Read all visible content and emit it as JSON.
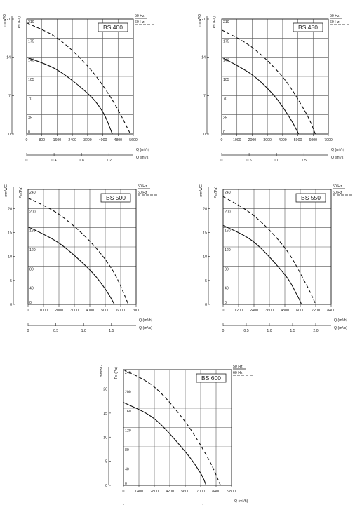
{
  "legend": {
    "hz50": "50 Hz",
    "hz60": "60 Hz"
  },
  "axes": {
    "ps_label": "Ps (Pa)",
    "mm_label": "mmWG",
    "q_h_label": "Q (m³/h)",
    "q_s_label": "Q (m³/s)"
  },
  "colors": {
    "line": "#111111",
    "grid": "#555555",
    "frame": "#222222"
  },
  "chart_data": [
    {
      "type": "line",
      "title": "BS 400",
      "ylabel": "Ps (Pa)",
      "y2label": "mmWG",
      "xlabel": "Q (m³/h)",
      "x2label": "Q (m³/s)",
      "ylim": [
        0,
        210
      ],
      "xlim": [
        0,
        5600
      ],
      "yticks": [
        0,
        35,
        70,
        105,
        140,
        175,
        210
      ],
      "mmticks": [
        {
          "v": 0,
          "label": "0"
        },
        {
          "v": 70,
          "label": "7"
        },
        {
          "v": 140,
          "label": "14"
        },
        {
          "v": 210,
          "label": "21"
        }
      ],
      "xticks": [
        0,
        800,
        1600,
        2400,
        3200,
        4000,
        4800,
        5600
      ],
      "x2ticks": [
        {
          "label": "0",
          "v": 0
        },
        {
          "label": "0.4",
          "v": 1440
        },
        {
          "label": "0.8",
          "v": 2880
        },
        {
          "label": "1.2",
          "v": 4320
        }
      ],
      "series": [
        {
          "name": "50 Hz",
          "dash": false,
          "points": [
            [
              0,
              140
            ],
            [
              1600,
              117
            ],
            [
              3200,
              74
            ],
            [
              4000,
              40
            ],
            [
              4500,
              0
            ]
          ]
        },
        {
          "name": "60 Hz",
          "dash": true,
          "points": [
            [
              0,
              203
            ],
            [
              1600,
              175
            ],
            [
              3200,
              124
            ],
            [
              4500,
              62
            ],
            [
              5450,
              0
            ]
          ]
        }
      ]
    },
    {
      "type": "line",
      "title": "BS 450",
      "ylabel": "Ps (Pa)",
      "y2label": "mmWG",
      "xlabel": "Q (m³/h)",
      "x2label": "Q (m³/s)",
      "ylim": [
        0,
        210
      ],
      "xlim": [
        0,
        7000
      ],
      "yticks": [
        0,
        35,
        70,
        105,
        140,
        175,
        210
      ],
      "mmticks": [
        {
          "v": 0,
          "label": "0"
        },
        {
          "v": 70,
          "label": "7"
        },
        {
          "v": 140,
          "label": "14"
        },
        {
          "v": 210,
          "label": "21"
        }
      ],
      "xticks": [
        0,
        1000,
        2000,
        3000,
        4000,
        5000,
        6000,
        7000
      ],
      "x2ticks": [
        {
          "label": "0",
          "v": 0
        },
        {
          "label": "0.5",
          "v": 1800
        },
        {
          "label": "1.0",
          "v": 3600
        },
        {
          "label": "1.5",
          "v": 5400
        }
      ],
      "series": [
        {
          "name": "50 Hz",
          "dash": false,
          "points": [
            [
              0,
              140
            ],
            [
              2000,
              108
            ],
            [
              3500,
              68
            ],
            [
              4500,
              28
            ],
            [
              5050,
              0
            ]
          ]
        },
        {
          "name": "60 Hz",
          "dash": true,
          "points": [
            [
              0,
              190
            ],
            [
              2000,
              158
            ],
            [
              4000,
              104
            ],
            [
              5500,
              40
            ],
            [
              6150,
              0
            ]
          ]
        }
      ]
    },
    {
      "type": "line",
      "title": "BS 500",
      "ylabel": "Ps (Pa)",
      "y2label": "mmWG",
      "xlabel": "Q (m³/h)",
      "x2label": "Q (m³/s)",
      "ylim": [
        0,
        240
      ],
      "xlim": [
        0,
        7000
      ],
      "yticks": [
        0,
        40,
        80,
        120,
        160,
        200,
        240
      ],
      "mmticks": [
        {
          "v": 0,
          "label": "0"
        },
        {
          "v": 50,
          "label": "5"
        },
        {
          "v": 100,
          "label": "10"
        },
        {
          "v": 150,
          "label": "15"
        },
        {
          "v": 200,
          "label": "20"
        }
      ],
      "xticks": [
        0,
        1000,
        2000,
        3000,
        4000,
        5000,
        6000,
        7000
      ],
      "x2ticks": [
        {
          "label": "0",
          "v": 0
        },
        {
          "label": "0.5",
          "v": 1800
        },
        {
          "label": "1.0",
          "v": 3600
        },
        {
          "label": "1.5",
          "v": 5400
        }
      ],
      "series": [
        {
          "name": "50 Hz",
          "dash": false,
          "points": [
            [
              0,
              162
            ],
            [
              2000,
              128
            ],
            [
              4000,
              72
            ],
            [
              5000,
              32
            ],
            [
              5600,
              0
            ]
          ]
        },
        {
          "name": "60 Hz",
          "dash": true,
          "points": [
            [
              0,
              222
            ],
            [
              2000,
              188
            ],
            [
              4000,
              132
            ],
            [
              5500,
              70
            ],
            [
              6500,
              0
            ]
          ]
        }
      ]
    },
    {
      "type": "line",
      "title": "BS 550",
      "ylabel": "Ps (Pa)",
      "y2label": "mmWG",
      "xlabel": "Q (m³/h)",
      "x2label": "Q (m³/s)",
      "ylim": [
        0,
        240
      ],
      "xlim": [
        0,
        8400
      ],
      "yticks": [
        0,
        40,
        80,
        120,
        160,
        200,
        240
      ],
      "mmticks": [
        {
          "v": 0,
          "label": "0"
        },
        {
          "v": 50,
          "label": "5"
        },
        {
          "v": 100,
          "label": "10"
        },
        {
          "v": 150,
          "label": "15"
        },
        {
          "v": 200,
          "label": "20"
        }
      ],
      "xticks": [
        0,
        1200,
        2400,
        3600,
        4800,
        6000,
        7200,
        8400
      ],
      "x2ticks": [
        {
          "label": "0",
          "v": 0
        },
        {
          "label": "0.5",
          "v": 1800
        },
        {
          "label": "1.0",
          "v": 3600
        },
        {
          "label": "1.5",
          "v": 5400
        },
        {
          "label": "2.0",
          "v": 7200
        }
      ],
      "series": [
        {
          "name": "50 Hz",
          "dash": false,
          "points": [
            [
              0,
              165
            ],
            [
              2400,
              130
            ],
            [
              4800,
              62
            ],
            [
              5700,
              22
            ],
            [
              6100,
              0
            ]
          ]
        },
        {
          "name": "60 Hz",
          "dash": true,
          "points": [
            [
              0,
              225
            ],
            [
              2400,
              185
            ],
            [
              4800,
              118
            ],
            [
              6400,
              45
            ],
            [
              7200,
              0
            ]
          ]
        }
      ]
    },
    {
      "type": "line",
      "title": "BS 600",
      "ylabel": "Ps (Pa)",
      "y2label": "mmWG",
      "xlabel": "Q (m³/h)",
      "x2label": "Q (m³/s)",
      "ylim": [
        0,
        240
      ],
      "xlim": [
        0,
        9800
      ],
      "yticks": [
        0,
        40,
        80,
        120,
        160,
        200,
        240
      ],
      "mmticks": [
        {
          "v": 0,
          "label": "0"
        },
        {
          "v": 50,
          "label": "5"
        },
        {
          "v": 100,
          "label": "10"
        },
        {
          "v": 150,
          "label": "15"
        },
        {
          "v": 200,
          "label": "20"
        }
      ],
      "xticks": [
        0,
        1400,
        2800,
        4200,
        5600,
        7000,
        8400,
        9800
      ],
      "x2ticks": [
        {
          "label": "0",
          "v": 0
        },
        {
          "label": "1.0",
          "v": 3600
        },
        {
          "label": "2.0",
          "v": 7200
        }
      ],
      "series": [
        {
          "name": "50 Hz",
          "dash": false,
          "points": [
            [
              0,
              172
            ],
            [
              2800,
              138
            ],
            [
              5600,
              70
            ],
            [
              7000,
              25
            ],
            [
              7500,
              0
            ]
          ]
        },
        {
          "name": "60 Hz",
          "dash": true,
          "points": [
            [
              0,
              240
            ],
            [
              2800,
              204
            ],
            [
              5600,
              132
            ],
            [
              7700,
              55
            ],
            [
              8800,
              0
            ]
          ]
        }
      ]
    }
  ]
}
